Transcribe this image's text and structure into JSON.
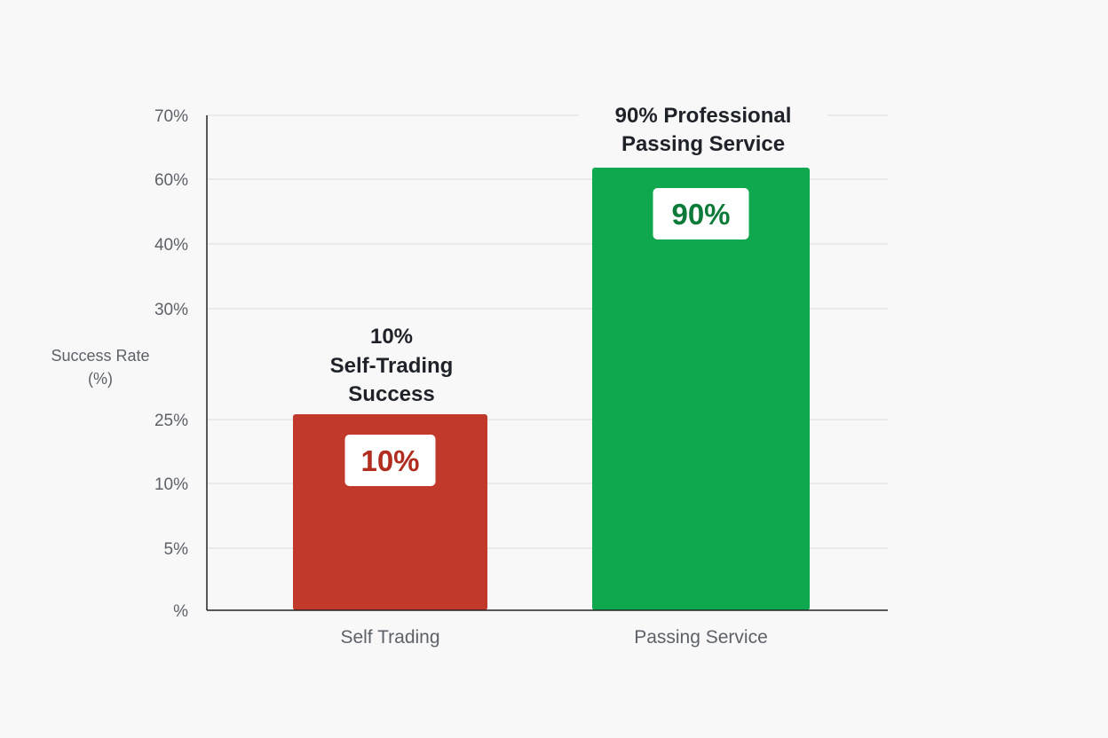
{
  "chart_data": {
    "type": "bar",
    "categories": [
      "Self Trading",
      "Passing Service"
    ],
    "values": [
      10,
      90
    ],
    "value_labels": [
      "10%",
      "90%"
    ],
    "annotations": [
      [
        "10%",
        "Self-Trading",
        "Success"
      ],
      [
        "90% Professional",
        "Passing Service"
      ]
    ],
    "ylabel": [
      "Success Rate",
      "(%)"
    ],
    "ytick_labels": [
      "70%",
      "60%",
      "40%",
      "30%",
      "25%",
      "10%",
      "5%",
      "%"
    ],
    "grid": true,
    "colors": {
      "bar_self": "#c0392b",
      "bar_service": "#10a84e",
      "label_self": "#b02d1f",
      "label_service": "#0d7a3a",
      "grid": "#dddddd",
      "axis": "#222222"
    }
  }
}
